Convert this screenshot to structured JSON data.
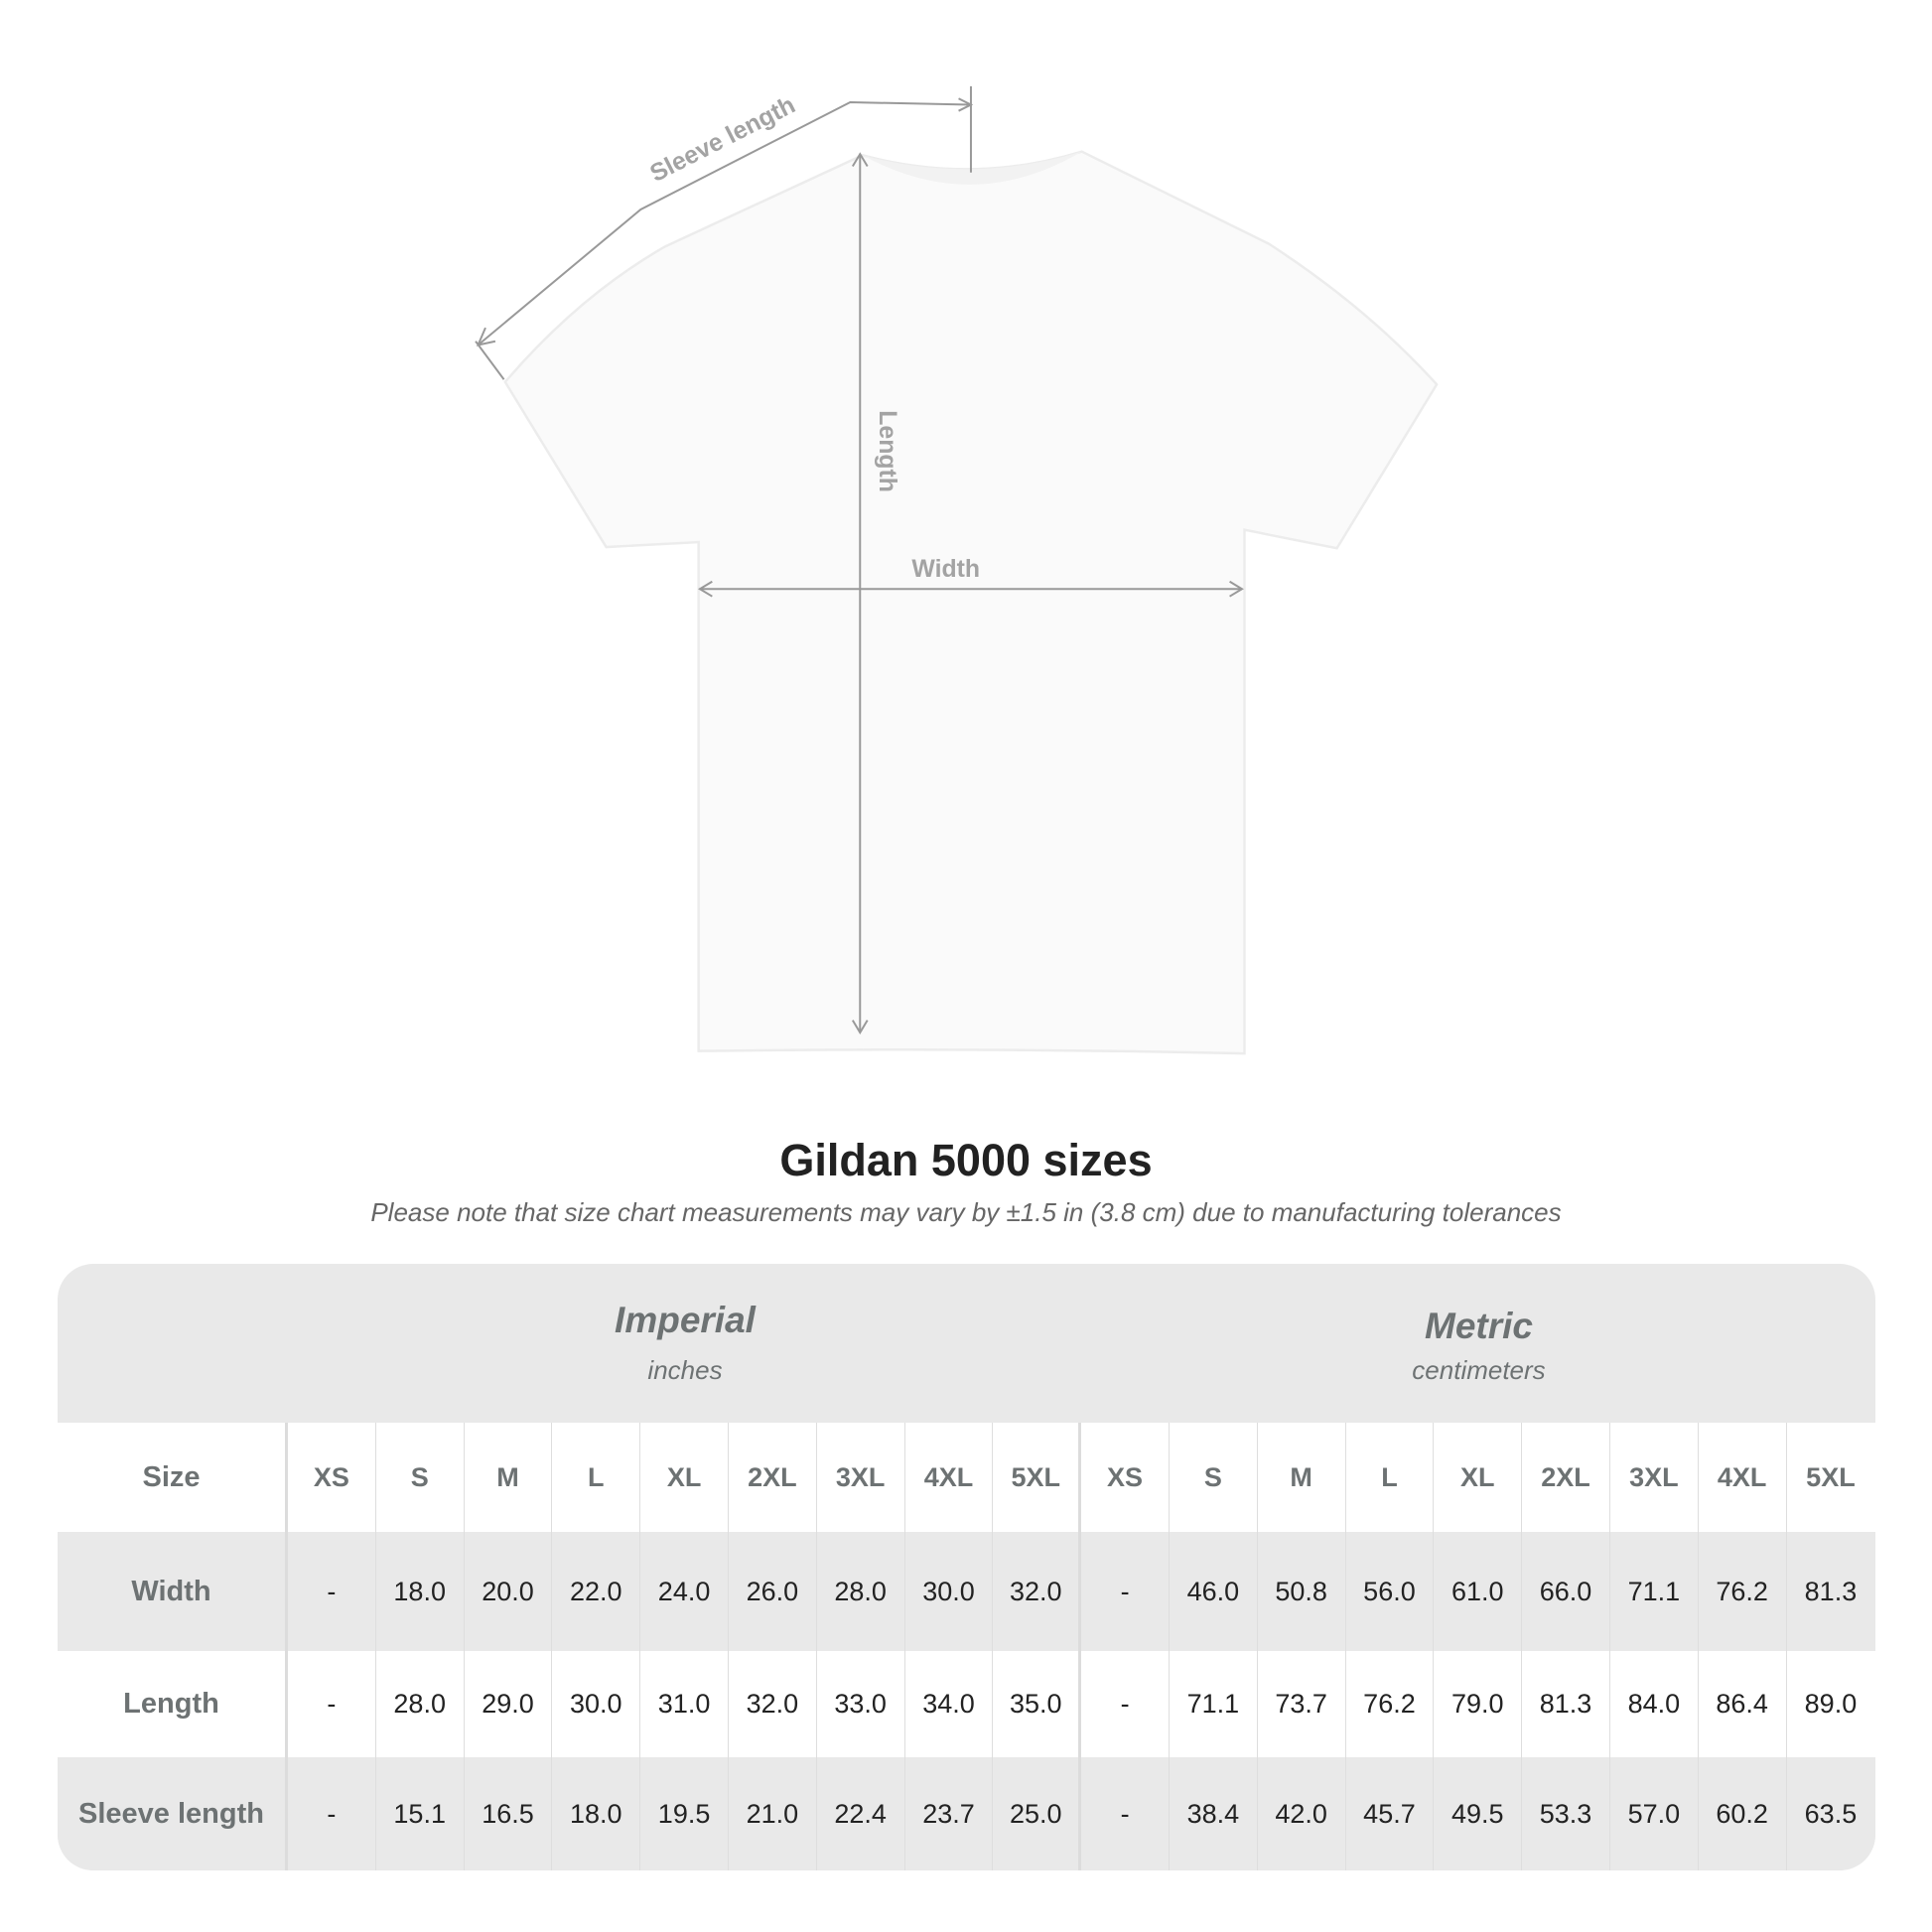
{
  "diagram": {
    "sleeve_label": "Sleeve length",
    "length_label": "Length",
    "width_label": "Width",
    "line_color": "#999999"
  },
  "title": "Gildan 5000 sizes",
  "subtitle": "Please note that size chart measurements may vary by ±1.5 in (3.8 cm) due to manufacturing tolerances",
  "table": {
    "imperial": {
      "title": "Imperial",
      "unit": "inches"
    },
    "metric": {
      "title": "Metric",
      "unit": "centimeters"
    },
    "size_label": "Size",
    "sizes": [
      "XS",
      "S",
      "M",
      "L",
      "XL",
      "2XL",
      "3XL",
      "4XL",
      "5XL"
    ],
    "rows": [
      {
        "label": "Width",
        "imperial": [
          "-",
          "18.0",
          "20.0",
          "22.0",
          "24.0",
          "26.0",
          "28.0",
          "30.0",
          "32.0"
        ],
        "metric": [
          "-",
          "46.0",
          "50.8",
          "56.0",
          "61.0",
          "66.0",
          "71.1",
          "76.2",
          "81.3"
        ]
      },
      {
        "label": "Length",
        "imperial": [
          "-",
          "28.0",
          "29.0",
          "30.0",
          "31.0",
          "32.0",
          "33.0",
          "34.0",
          "35.0"
        ],
        "metric": [
          "-",
          "71.1",
          "73.7",
          "76.2",
          "79.0",
          "81.3",
          "84.0",
          "86.4",
          "89.0"
        ]
      },
      {
        "label": "Sleeve length",
        "imperial": [
          "-",
          "15.1",
          "16.5",
          "18.0",
          "19.5",
          "21.0",
          "22.4",
          "23.7",
          "25.0"
        ],
        "metric": [
          "-",
          "38.4",
          "42.0",
          "45.7",
          "49.5",
          "53.3",
          "57.0",
          "60.2",
          "63.5"
        ]
      }
    ]
  }
}
